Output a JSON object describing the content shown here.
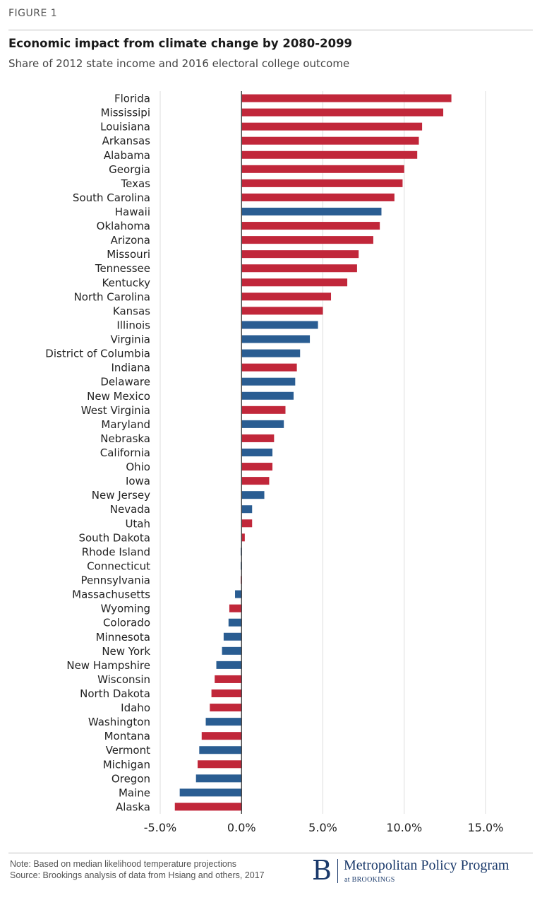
{
  "figure_label": "FIGURE 1",
  "footer": {
    "note": "Note: Based on median likelihood temperature projections",
    "source": "Source: Brookings analysis of data from Hsiang and others, 2017",
    "brand_initial": "B",
    "brand_name": "Metropolitan Policy Program",
    "brand_sub": "at BROOKINGS"
  },
  "colors": {
    "republican": "#c1273a",
    "democrat": "#2a5d92",
    "grid": "#dddddd",
    "axis": "#333333"
  },
  "chart_data": {
    "type": "bar",
    "orientation": "horizontal",
    "title": "Economic impact from climate change by 2080-2099",
    "subtitle": "Share of 2012 state income and 2016 electoral college outcome",
    "xlim": [
      -5,
      15
    ],
    "xticks": [
      -5,
      0,
      5,
      10,
      15
    ],
    "xtick_labels": [
      "-5.0%",
      "0.0%",
      "5.0%",
      "10.0%",
      "15.0%"
    ],
    "grid": true,
    "categories": [
      "Florida",
      "Mississipi",
      "Louisiana",
      "Arkansas",
      "Alabama",
      "Georgia",
      "Texas",
      "South Carolina",
      "Hawaii",
      "Oklahoma",
      "Arizona",
      "Missouri",
      "Tennessee",
      "Kentucky",
      "North Carolina",
      "Kansas",
      "Illinois",
      "Virginia",
      "District of Columbia",
      "Indiana",
      "Delaware",
      "New Mexico",
      "West Virginia",
      "Maryland",
      "Nebraska",
      "California",
      "Ohio",
      "Iowa",
      "New Jersey",
      "Nevada",
      "Utah",
      "South Dakota",
      "Rhode Island",
      "Connecticut",
      "Pennsylvania",
      "Massachusetts",
      "Wyoming",
      "Colorado",
      "Minnesota",
      "New York",
      "New Hampshire",
      "Wisconsin",
      "North Dakota",
      "Idaho",
      "Washington",
      "Montana",
      "Vermont",
      "Michigan",
      "Oregon",
      "Maine",
      "Alaska"
    ],
    "values": [
      12.9,
      12.4,
      11.1,
      10.9,
      10.8,
      10.0,
      9.9,
      9.4,
      8.6,
      8.5,
      8.1,
      7.2,
      7.1,
      6.5,
      5.5,
      5.0,
      4.7,
      4.2,
      3.6,
      3.4,
      3.3,
      3.2,
      2.7,
      2.6,
      2.0,
      1.9,
      1.9,
      1.7,
      1.4,
      0.65,
      0.65,
      0.2,
      -0.05,
      -0.05,
      -0.05,
      -0.4,
      -0.75,
      -0.8,
      -1.1,
      -1.2,
      -1.55,
      -1.65,
      -1.85,
      -1.95,
      -2.2,
      -2.45,
      -2.6,
      -2.7,
      -2.8,
      -3.8,
      -4.1
    ],
    "party": [
      "R",
      "R",
      "R",
      "R",
      "R",
      "R",
      "R",
      "R",
      "D",
      "R",
      "R",
      "R",
      "R",
      "R",
      "R",
      "R",
      "D",
      "D",
      "D",
      "R",
      "D",
      "D",
      "R",
      "D",
      "R",
      "D",
      "R",
      "R",
      "D",
      "D",
      "R",
      "R",
      "D",
      "D",
      "R",
      "D",
      "R",
      "D",
      "D",
      "D",
      "D",
      "R",
      "R",
      "R",
      "D",
      "R",
      "D",
      "R",
      "D",
      "D",
      "R"
    ]
  }
}
